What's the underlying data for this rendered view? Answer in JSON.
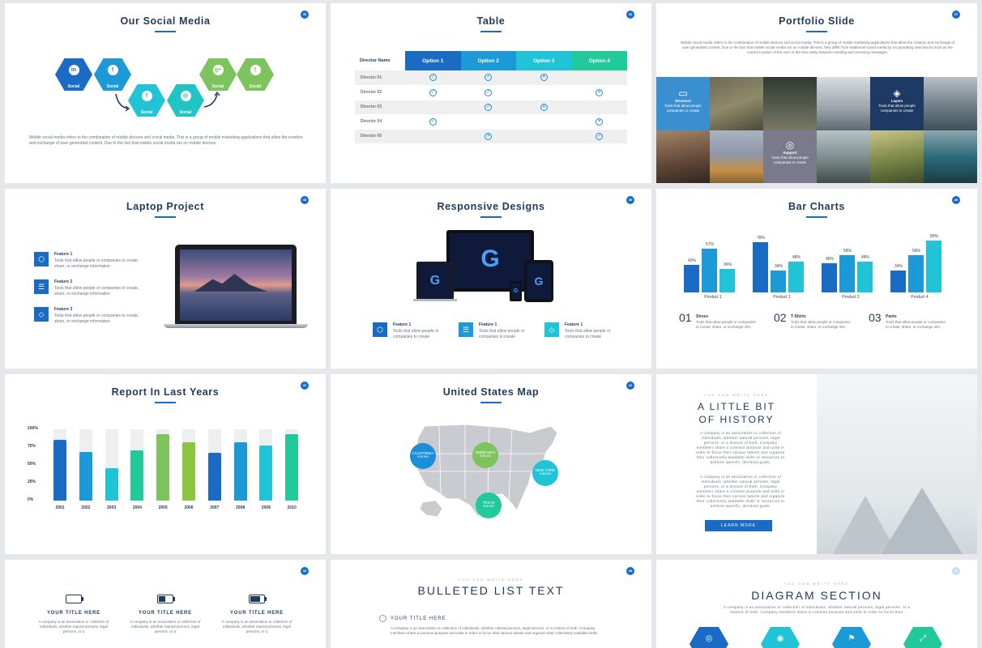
{
  "colors": {
    "blue": "#1a6bc4",
    "sky": "#1c9ad8",
    "cyan": "#21c4d6",
    "green": "#7dc45e",
    "teal": "#22c99b",
    "navy": "#1f3a5c"
  },
  "s35": {
    "title": "Our Social Media",
    "num": "35",
    "hexes": [
      {
        "icon": "in",
        "label": "Social",
        "color": "#1a6bc4",
        "icon_name": "linkedin-icon"
      },
      {
        "icon": "t",
        "label": "Social",
        "color": "#1c9ad8",
        "icon_name": "twitter-icon"
      },
      {
        "icon": "f",
        "label": "Social",
        "color": "#21c4d6",
        "icon_name": "facebook-icon"
      },
      {
        "icon": "◎",
        "label": "Social",
        "color": "#21c4c4",
        "icon_name": "instagram-icon"
      },
      {
        "icon": "g+",
        "label": "Social",
        "color": "#7dc45e",
        "icon_name": "google-plus-icon"
      },
      {
        "icon": "t",
        "label": "Social",
        "color": "#7dc45e",
        "icon_name": "twitter-icon"
      }
    ],
    "body": "Mobile social media refers to the combination of mobile devices and social media. This is a group of mobile marketing applications that allow the creation and exchange of user-generated content. Due to the fact that mobile social media run on mobile devices"
  },
  "s36": {
    "title": "Table",
    "num": "36",
    "header": {
      "label": "Director Name",
      "options": [
        "Option 1",
        "Option 2",
        "Option 3",
        "Option 4"
      ],
      "colors": [
        "#1a6bc4",
        "#1c9ad8",
        "#21c4d6",
        "#22c99b"
      ]
    },
    "rows": [
      {
        "name": "Director 01",
        "cells": [
          "check",
          "check",
          "cross",
          ""
        ]
      },
      {
        "name": "Director 02",
        "cells": [
          "check",
          "check",
          "",
          "cross"
        ]
      },
      {
        "name": "Director 03",
        "cells": [
          "",
          "check",
          "cross",
          ""
        ]
      },
      {
        "name": "Director 04",
        "cells": [
          "check",
          "",
          "",
          "cross"
        ]
      },
      {
        "name": "Director 05",
        "cells": [
          "",
          "cross",
          "",
          "check"
        ]
      }
    ]
  },
  "s37": {
    "title": "Portfolio Slide",
    "num": "37",
    "body": "Mobile social media refers to the combination of mobile devices and social media. This is a group of mobile marketing applications that allow the creation and exchange of user-generated content. Due to the fact that mobile social media run on mobile devices, they differ from traditional social media by incorporating new factors such as the current location of the user or the time delay between sending and receiving messages.",
    "overlays": [
      {
        "title": "Structure",
        "text": "Tools that allow people companies to create",
        "icon": "laptop-icon"
      },
      {
        "title": "Layers",
        "text": "Tools that allow people companies to create",
        "icon": "layers-icon"
      },
      {
        "title": "Support",
        "text": "Tools that allow people companies to create",
        "icon": "lifebuoy-icon"
      }
    ]
  },
  "s38": {
    "title": "Laptop Project",
    "num": "38",
    "features": [
      {
        "title": "Feature 1",
        "text": "Tools that allow people or companies to create, share, or exchange information"
      },
      {
        "title": "Feature 2",
        "text": "Tools that allow people or companies to create, share, or exchange information"
      },
      {
        "title": "Feature 3",
        "text": "Tools that allow people or companies to create, share, or exchange information"
      }
    ]
  },
  "s39": {
    "title": "Responsive Designs",
    "num": "39",
    "features": [
      {
        "title": "Feature 1",
        "text": "Tools that allow people or companies to create"
      },
      {
        "title": "Feature 1",
        "text": "Tools that allow people or companies to create"
      },
      {
        "title": "Feature 1",
        "text": "Tools that allow people or companies to create"
      }
    ]
  },
  "s40": {
    "title": "Bar Charts",
    "num": "40",
    "chart_data": {
      "type": "bar",
      "categories": [
        "Product 1",
        "Product 2",
        "Product 3",
        "Product 4"
      ],
      "series": [
        {
          "values": [
            43,
            78,
            45,
            34
          ]
        },
        {
          "values": [
            67,
            34,
            58,
            58
          ]
        },
        {
          "values": [
            36,
            48,
            48,
            80
          ]
        }
      ],
      "labels": [
        [
          "43%",
          "67%",
          "36%"
        ],
        [
          "78%",
          "34%",
          "48%"
        ],
        [
          "45%",
          "58%",
          "48%"
        ],
        [
          "34%",
          "58%",
          "80%"
        ]
      ],
      "ylim": [
        0,
        100
      ]
    },
    "items": [
      {
        "num": "01",
        "title": "Shoes",
        "text": "Tools that allow people or companies to create, share, or exchange info."
      },
      {
        "num": "02",
        "title": "T-Shirts",
        "text": "Tools that allow people or companies to create, share, or exchange info."
      },
      {
        "num": "03",
        "title": "Pants",
        "text": "Tools that allow people or companies to create, share, or exchange info."
      }
    ]
  },
  "s41": {
    "title": "Report In Last Years",
    "num": "41",
    "chart_data": {
      "type": "bar",
      "categories": [
        "2001",
        "2002",
        "2003",
        "2004",
        "2005",
        "2006",
        "2007",
        "2008",
        "2009",
        "2010"
      ],
      "values": [
        85,
        68,
        45,
        70,
        93,
        82,
        67,
        82,
        77,
        93
      ],
      "yticks": [
        "100%",
        "75%",
        "50%",
        "25%",
        "0%"
      ],
      "ylim": [
        0,
        100
      ],
      "colors": [
        "#1a6bc4",
        "#1c9ad8",
        "#21c4d6",
        "#22c99b",
        "#7dc45e",
        "#8cc63f",
        "#1a6bc4",
        "#1c9ad8",
        "#21c4d6",
        "#22c99b"
      ]
    }
  },
  "s42": {
    "title": "United States Map",
    "num": "42",
    "pins": [
      {
        "name": "CALIFORNIA",
        "sub": "$ 59,890",
        "color": "#1a8fd8"
      },
      {
        "name": "NEBRASKA",
        "sub": "$ 58,000",
        "color": "#7dc45e"
      },
      {
        "name": "NEW YORK",
        "sub": "$ 98,000",
        "color": "#21c4d6"
      },
      {
        "name": "TEXAS",
        "sub": "$ 58,000",
        "color": "#22c99b"
      }
    ]
  },
  "s43": {
    "tagline": "YOU CAN WRITE HERE",
    "title1": "A LITTLE BIT",
    "title2": "OF HISTORY",
    "p1": "A company is an association or collection of individuals, whether natural persons, legal persons, or a mixture of both. Company members share a common purpose and unite in order to focus their various talents and organize their collectively available skills or resources to achieve specific, declared goals.",
    "p2": "A company is an association or collection of individuals, whether natural persons, legal persons, or a mixture of both. Company members share a common purpose and unite in order to focus their various talents and organize their collectively available skills or resources to achieve specific, declared goals.",
    "button": "LEARN MORE"
  },
  "s44": {
    "num": "44",
    "items": [
      {
        "title": "YOUR TITLE HERE",
        "text": "A company is an association or collection of individuals, whether natural persons, legal persons, or a",
        "level": 0.0
      },
      {
        "title": "YOUR TITLE HERE",
        "text": "A company is an association or collection of individuals, whether natural persons, legal persons, or a",
        "level": 0.5
      },
      {
        "title": "YOUR TITLE HERE",
        "text": "A company is an association or collection of individuals, whether natural persons, legal persons, or a",
        "level": 0.75
      }
    ]
  },
  "s45": {
    "num": "45",
    "tagline": "YOU CAN WRITE HERE",
    "title": "BULLETED LIST TEXT",
    "item_title": "YOUR TITLE HERE",
    "item_text": "A company is an association or collection of individuals, whether natural persons, legal persons, or a mixture of both. Company members share a common purpose and unite in order to focus their various talents and organize their collectively available skills"
  },
  "s46": {
    "num": "46",
    "tagline": "YOU CAN WRITE HERE",
    "title": "DIAGRAM SECTION",
    "body": "A company is an association or collection of individuals, whether natural persons, legal persons, or a mixture of both. Company members share a common purpose and unite in order to focus their",
    "hex_colors": [
      "#1a6bc4",
      "#21c4d6",
      "#1c9ad8",
      "#22c99b"
    ]
  }
}
